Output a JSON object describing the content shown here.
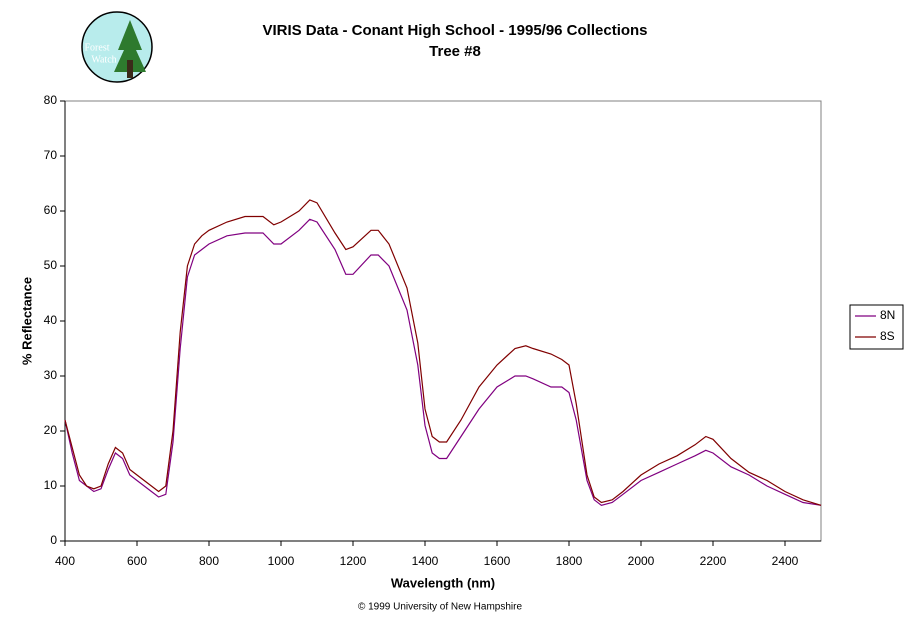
{
  "logo_text": [
    "Forest",
    "Watch"
  ],
  "chart_data": {
    "type": "line",
    "title": "VIRIS Data - Conant High School - 1995/96 Collections",
    "subtitle": "Tree #8",
    "x_label": "Wavelength (nm)",
    "y_label": "% Reflectance",
    "footer": "© 1999 University of New Hampshire",
    "legend": "right",
    "xlim": [
      400,
      2500
    ],
    "xticks": [
      400,
      600,
      800,
      1000,
      1200,
      1400,
      1600,
      1800,
      2000,
      2200,
      2400
    ],
    "ylim": [
      0,
      80
    ],
    "yticks": [
      0,
      10,
      20,
      30,
      40,
      50,
      60,
      70,
      80
    ],
    "x": [
      400,
      420,
      440,
      460,
      480,
      500,
      520,
      540,
      560,
      580,
      600,
      620,
      640,
      660,
      680,
      700,
      720,
      740,
      760,
      780,
      800,
      850,
      900,
      950,
      980,
      1000,
      1050,
      1080,
      1100,
      1150,
      1180,
      1200,
      1250,
      1270,
      1300,
      1350,
      1380,
      1400,
      1420,
      1440,
      1460,
      1500,
      1550,
      1600,
      1650,
      1680,
      1700,
      1750,
      1780,
      1800,
      1820,
      1850,
      1870,
      1890,
      1920,
      1950,
      2000,
      2050,
      2100,
      2150,
      2180,
      2200,
      2250,
      2300,
      2350,
      2400,
      2450,
      2500
    ],
    "series": [
      {
        "name": "8N",
        "color": "#800080",
        "values": [
          22,
          16,
          11,
          10,
          9,
          9.5,
          13,
          16,
          15,
          12,
          11,
          10,
          9,
          8,
          8.5,
          18,
          35,
          48,
          52,
          53,
          54,
          55.5,
          56,
          56,
          54,
          54,
          56.5,
          58.5,
          58,
          53,
          48.5,
          48.5,
          52,
          52,
          50,
          42,
          32,
          21,
          16,
          15,
          15,
          19,
          24,
          28,
          30,
          30,
          29.5,
          28,
          28,
          27,
          22,
          11,
          7.5,
          6.5,
          7,
          8.5,
          11,
          12.5,
          14,
          15.5,
          16.5,
          16,
          13.5,
          12,
          10,
          8.5,
          7,
          6.5
        ]
      },
      {
        "name": "8S",
        "color": "#800000",
        "values": [
          22,
          17,
          12,
          10,
          9.5,
          10,
          14,
          17,
          16,
          13,
          12,
          11,
          10,
          9,
          10,
          20,
          38,
          50,
          54,
          55.5,
          56.5,
          58,
          59,
          59,
          57.5,
          58,
          60,
          62,
          61.5,
          56,
          53,
          53.5,
          56.5,
          56.5,
          54,
          46,
          36,
          24,
          19,
          18,
          18,
          22,
          28,
          32,
          35,
          35.5,
          35,
          34,
          33,
          32,
          25,
          12,
          8,
          7,
          7.5,
          9,
          12,
          14,
          15.5,
          17.5,
          19,
          18.5,
          15,
          12.5,
          11,
          9,
          7.5,
          6.5
        ]
      }
    ]
  }
}
